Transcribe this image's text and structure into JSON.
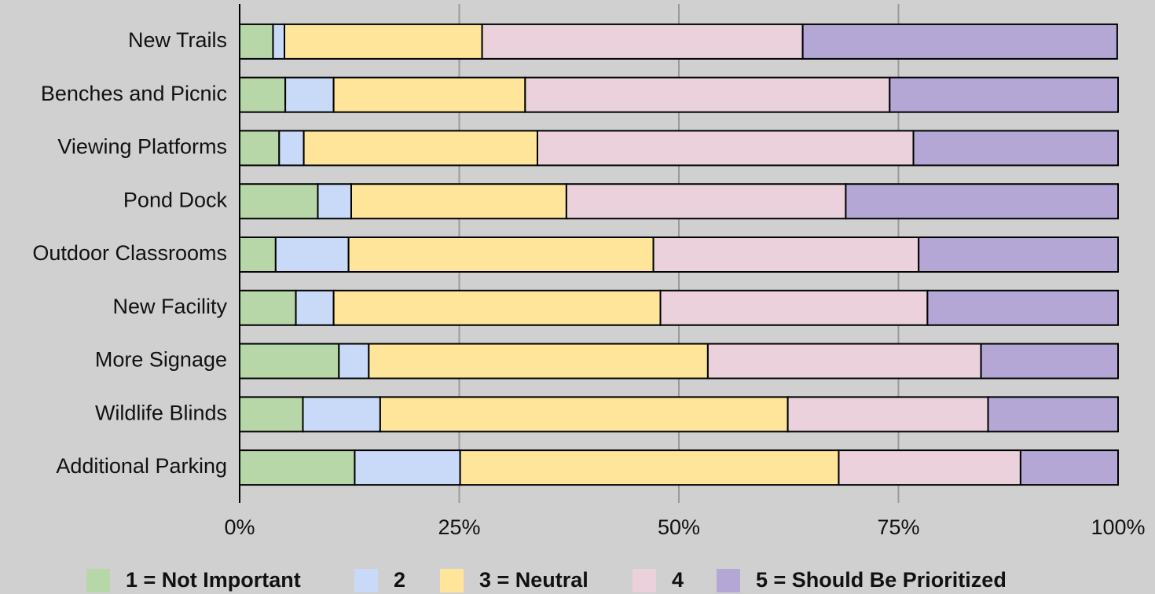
{
  "chart_data": {
    "type": "stacked-bar-horizontal",
    "categories": [
      "New Trails",
      "Benches and Picnic",
      "Viewing Platforms",
      "Pond Dock",
      "Outdoor Classrooms",
      "New Facility",
      "More Signage",
      "Wildlife Blinds",
      "Additional Parking"
    ],
    "series": [
      {
        "name": "1 = Not Important",
        "color": "#b7d7a8",
        "values": [
          3.8,
          5.2,
          4.5,
          8.9,
          4.1,
          6.4,
          11.3,
          7.2,
          13.1
        ]
      },
      {
        "name": "2",
        "color": "#c9daf8",
        "values": [
          1.3,
          5.5,
          2.8,
          3.8,
          8.3,
          4.3,
          3.4,
          8.8,
          12.0
        ]
      },
      {
        "name": "3 = Neutral",
        "color": "#ffe599",
        "values": [
          22.5,
          21.8,
          26.6,
          24.5,
          34.7,
          37.2,
          38.6,
          46.4,
          43.1
        ]
      },
      {
        "name": "4",
        "color": "#ead1dc",
        "values": [
          36.5,
          41.5,
          42.8,
          31.8,
          30.2,
          30.4,
          31.1,
          22.8,
          20.7
        ]
      },
      {
        "name": "5 = Should Be Prioritized",
        "color": "#b4a7d6",
        "values": [
          35.8,
          26.0,
          23.3,
          31.0,
          22.7,
          21.7,
          15.6,
          14.8,
          11.1
        ]
      }
    ],
    "xlim": [
      0,
      100
    ],
    "xticks": [
      {
        "value": 0,
        "label": "0%"
      },
      {
        "value": 25,
        "label": "25%"
      },
      {
        "value": 50,
        "label": "50%"
      },
      {
        "value": 75,
        "label": "75%"
      },
      {
        "value": 100,
        "label": "100%"
      }
    ],
    "grid": true,
    "legend": "bottom"
  }
}
